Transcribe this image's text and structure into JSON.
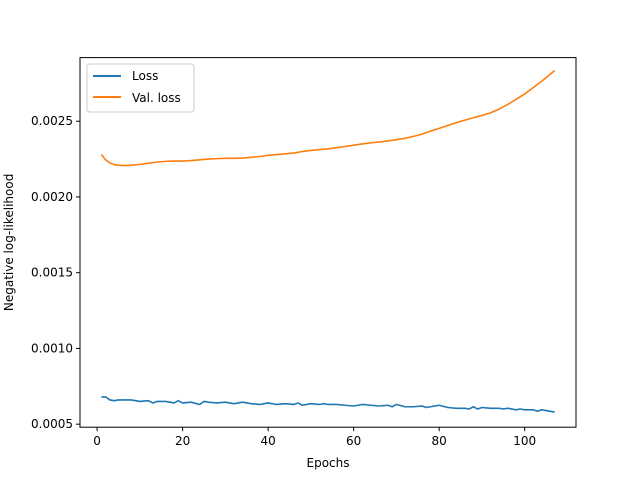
{
  "chart_data": {
    "type": "line",
    "xlabel": "Epochs",
    "ylabel": "Negative log-likelihood",
    "xlim": [
      -4,
      112
    ],
    "ylim": [
      0.00048,
      0.00292
    ],
    "xticks": [
      0,
      20,
      40,
      60,
      80,
      100
    ],
    "xtick_labels": [
      "0",
      "20",
      "40",
      "60",
      "80",
      "100"
    ],
    "yticks": [
      0.0005,
      0.001,
      0.0015,
      0.002,
      0.0025
    ],
    "ytick_labels": [
      "0.0005",
      "0.0010",
      "0.0015",
      "0.0020",
      "0.0025"
    ],
    "grid": false,
    "legend_position": "upper-left",
    "series": [
      {
        "name": "Loss",
        "color": "#1f77b4",
        "x": [
          1,
          2,
          3,
          4,
          5,
          6,
          8,
          10,
          12,
          13,
          14,
          16,
          18,
          19,
          20,
          22,
          24,
          25,
          26,
          28,
          30,
          32,
          33,
          34,
          36,
          38,
          40,
          42,
          44,
          46,
          47,
          48,
          50,
          52,
          53,
          54,
          56,
          58,
          60,
          62,
          64,
          66,
          68,
          69,
          70,
          72,
          74,
          76,
          77,
          78,
          80,
          82,
          84,
          86,
          87,
          88,
          89,
          90,
          92,
          94,
          95,
          96,
          98,
          99,
          100,
          102,
          103,
          104,
          106,
          107
        ],
        "values": [
          0.00068,
          0.00068,
          0.00066,
          0.000655,
          0.00066,
          0.00066,
          0.00066,
          0.00065,
          0.000655,
          0.00064,
          0.00065,
          0.00065,
          0.00064,
          0.000655,
          0.00064,
          0.000645,
          0.00063,
          0.00065,
          0.000645,
          0.00064,
          0.000645,
          0.000635,
          0.00064,
          0.000645,
          0.000635,
          0.00063,
          0.00064,
          0.00063,
          0.000635,
          0.00063,
          0.00064,
          0.000625,
          0.000635,
          0.00063,
          0.000635,
          0.00063,
          0.00063,
          0.000625,
          0.00062,
          0.00063,
          0.000625,
          0.00062,
          0.000625,
          0.000615,
          0.00063,
          0.000615,
          0.000615,
          0.00062,
          0.00061,
          0.000615,
          0.000625,
          0.00061,
          0.000605,
          0.000605,
          0.0006,
          0.000615,
          0.0006,
          0.00061,
          0.000605,
          0.000605,
          0.0006,
          0.000605,
          0.000595,
          0.0006,
          0.000595,
          0.000595,
          0.000585,
          0.000595,
          0.000585,
          0.00058
        ]
      },
      {
        "name": "Val. loss",
        "color": "#ff7f0e",
        "x": [
          1,
          2,
          3,
          4,
          5,
          6,
          7,
          8,
          10,
          12,
          14,
          16,
          18,
          20,
          22,
          24,
          26,
          28,
          30,
          32,
          34,
          36,
          38,
          40,
          42,
          44,
          46,
          48,
          50,
          52,
          54,
          56,
          58,
          60,
          62,
          64,
          66,
          68,
          70,
          72,
          74,
          76,
          78,
          80,
          82,
          84,
          86,
          88,
          90,
          92,
          94,
          96,
          98,
          100,
          102,
          104,
          106,
          107
        ],
        "values": [
          0.00228,
          0.002245,
          0.002225,
          0.002213,
          0.00221,
          0.002208,
          0.002208,
          0.00221,
          0.002215,
          0.002223,
          0.00223,
          0.002235,
          0.002237,
          0.002237,
          0.00224,
          0.002245,
          0.00225,
          0.002253,
          0.002255,
          0.002255,
          0.002257,
          0.002262,
          0.002267,
          0.002275,
          0.00228,
          0.002285,
          0.00229,
          0.0023,
          0.002307,
          0.002313,
          0.002318,
          0.002325,
          0.002333,
          0.002342,
          0.00235,
          0.002357,
          0.002363,
          0.00237,
          0.002378,
          0.002387,
          0.0024,
          0.002415,
          0.002435,
          0.002453,
          0.002472,
          0.00249,
          0.002507,
          0.002523,
          0.002538,
          0.002555,
          0.00258,
          0.00261,
          0.002645,
          0.00268,
          0.002722,
          0.002765,
          0.00281,
          0.002835
        ]
      }
    ]
  }
}
